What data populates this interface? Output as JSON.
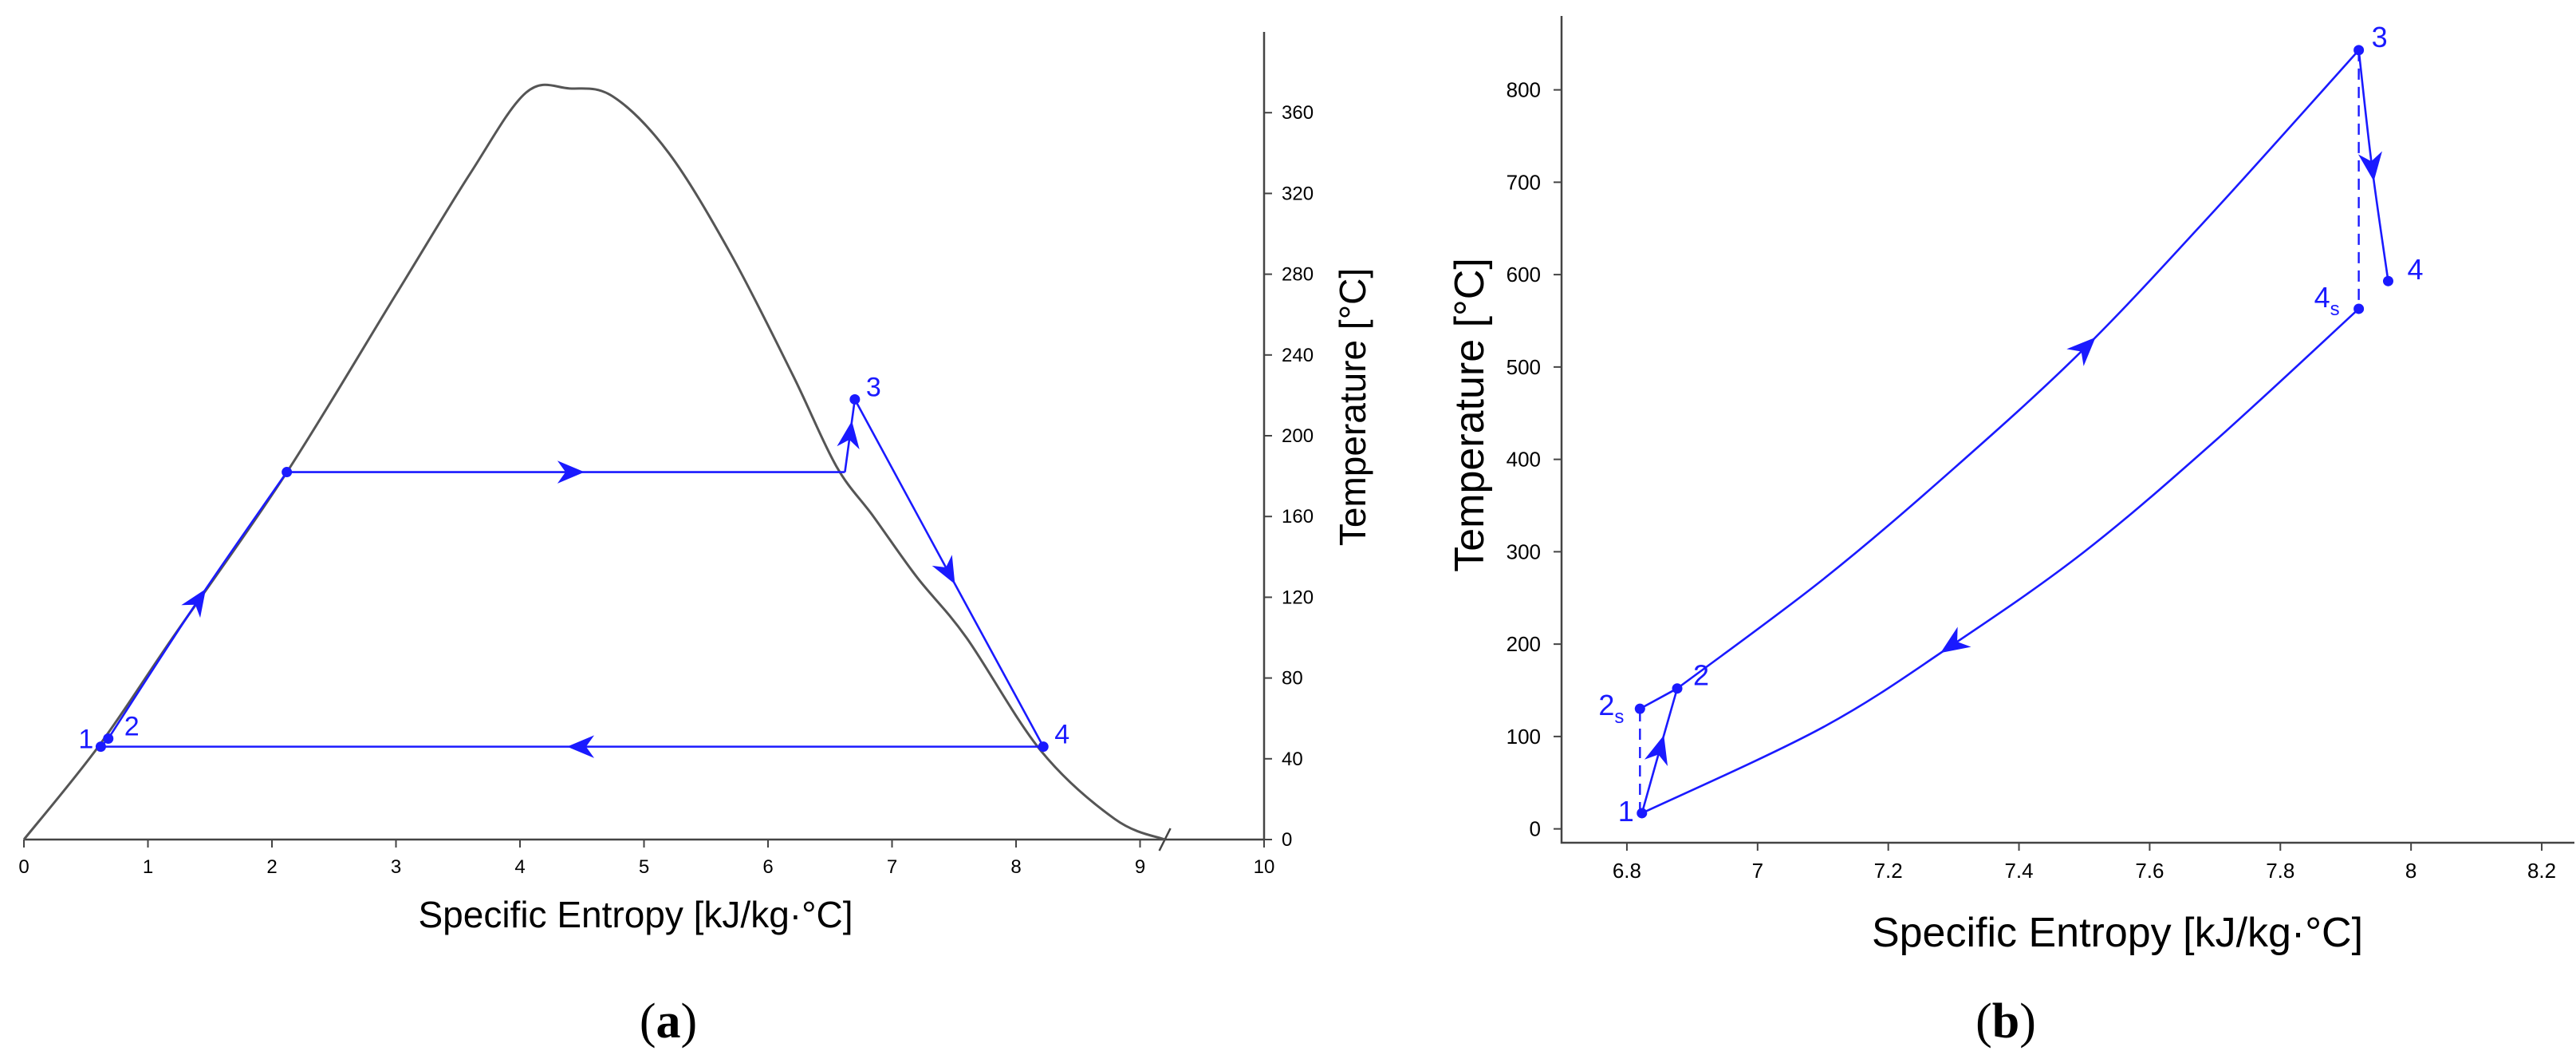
{
  "colors": {
    "cycle": "#1a1aff",
    "dome": "#555555",
    "axis": "#444444",
    "text": "#000000"
  },
  "chart_data": [
    {
      "id": "a",
      "type": "line",
      "panel_label": "a",
      "xlabel": "Specific Entropy [kJ/kg·°C]",
      "ylabel": "Temperature [°C]",
      "xlim": [
        0,
        10
      ],
      "ylim": [
        0,
        400
      ],
      "xticks": [
        0,
        1,
        2,
        3,
        4,
        5,
        6,
        7,
        8,
        9,
        10
      ],
      "yticks": [
        0,
        40,
        80,
        120,
        160,
        200,
        240,
        280,
        320,
        360
      ],
      "saturation_dome": {
        "name": "saturation curve",
        "x": [
          0.0,
          0.6,
          1.2,
          2.1,
          3.0,
          3.6,
          4.05,
          4.4,
          4.75,
          5.2,
          5.7,
          6.2,
          6.55,
          6.85,
          7.2,
          7.6,
          8.2,
          8.8,
          9.2
        ],
        "y": [
          0,
          46,
          100,
          180,
          270,
          330,
          370,
          372,
          368,
          340,
          290,
          230,
          185,
          160,
          130,
          100,
          44,
          10,
          0
        ]
      },
      "series": [
        {
          "name": "1-2 pump",
          "x": [
            0.62,
            0.68
          ],
          "y": [
            46,
            50
          ]
        },
        {
          "name": "2-boiler",
          "x": [
            0.68,
            1.4,
            2.12
          ],
          "y": [
            50,
            118,
            182
          ],
          "arrow": {
            "x": 1.4,
            "y": 118
          }
        },
        {
          "name": "evaporation",
          "x": [
            2.12,
            4.4,
            6.62
          ],
          "y": [
            182,
            182,
            182
          ],
          "arrow": {
            "x": 4.4,
            "y": 182
          }
        },
        {
          "name": "superheat to 3",
          "x": [
            6.62,
            6.7
          ],
          "y": [
            182,
            218
          ],
          "arrow": {
            "x": 6.66,
            "y": 200
          }
        },
        {
          "name": "3-4 expansion",
          "x": [
            6.7,
            7.45,
            8.22
          ],
          "y": [
            218,
            133,
            46
          ],
          "arrow": {
            "x": 7.45,
            "y": 133
          }
        },
        {
          "name": "4-1 condensation",
          "x": [
            8.22,
            4.5,
            0.62
          ],
          "y": [
            46,
            46,
            46
          ],
          "arrow": {
            "x": 4.5,
            "y": 46
          }
        }
      ],
      "points": [
        {
          "label": "1",
          "x": 0.62,
          "y": 46
        },
        {
          "label": "2",
          "x": 0.68,
          "y": 50
        },
        {
          "label": "",
          "x": 2.12,
          "y": 182
        },
        {
          "label": "3",
          "x": 6.7,
          "y": 218
        },
        {
          "label": "4",
          "x": 8.22,
          "y": 46
        }
      ]
    },
    {
      "id": "b",
      "type": "line",
      "panel_label": "b",
      "xlabel": "Specific Entropy [kJ/kg·°C]",
      "ylabel": "Temperature [°C]",
      "xlim": [
        6.7,
        8.25
      ],
      "ylim": [
        -15,
        880
      ],
      "xticks": [
        6.8,
        7.0,
        7.2,
        7.4,
        7.6,
        7.8,
        8.0,
        8.2
      ],
      "xticklabels": [
        "6.8",
        "7",
        "7.2",
        "7.4",
        "7.6",
        "7.8",
        "8",
        "8.2"
      ],
      "yticks": [
        0,
        100,
        200,
        300,
        400,
        500,
        600,
        700,
        800
      ],
      "series": [
        {
          "name": "1-2 compression",
          "x": [
            6.823,
            6.85,
            6.877
          ],
          "y": [
            17,
            85,
            152
          ],
          "arrow": {
            "x": 6.85,
            "y": 85
          }
        },
        {
          "name": "2-3 heat addition",
          "x": [
            6.877,
            7.1,
            7.3,
            7.5,
            7.7,
            7.92
          ],
          "y": [
            152,
            270,
            390,
            520,
            670,
            843
          ],
          "arrow": {
            "x": 7.5,
            "y": 520
          }
        },
        {
          "name": "3-4 expansion",
          "x": [
            7.92,
            7.94,
            7.965
          ],
          "y": [
            843,
            718,
            593
          ],
          "arrow": {
            "x": 7.94,
            "y": 718
          }
        },
        {
          "name": "4s-1 heat rejection",
          "x": [
            7.92,
            7.7,
            7.5,
            7.3,
            7.1,
            6.823
          ],
          "y": [
            563,
            420,
            300,
            200,
            110,
            17
          ],
          "arrow": {
            "x": 7.3,
            "y": 200
          }
        },
        {
          "name": "2s-2",
          "x": [
            6.82,
            6.877
          ],
          "y": [
            130,
            152
          ]
        }
      ],
      "dashed": [
        {
          "name": "1-2s isentropic",
          "x": [
            6.82,
            6.82
          ],
          "y": [
            17,
            130
          ]
        },
        {
          "name": "3-4s isentropic",
          "x": [
            7.92,
            7.92
          ],
          "y": [
            843,
            563
          ]
        }
      ],
      "points": [
        {
          "label": "1",
          "x": 6.823,
          "y": 17
        },
        {
          "label": "2",
          "x": 6.877,
          "y": 152
        },
        {
          "label": "2s",
          "x": 6.82,
          "y": 130
        },
        {
          "label": "3",
          "x": 7.92,
          "y": 843
        },
        {
          "label": "4",
          "x": 7.965,
          "y": 593
        },
        {
          "label": "4s",
          "x": 7.92,
          "y": 563
        }
      ]
    }
  ]
}
